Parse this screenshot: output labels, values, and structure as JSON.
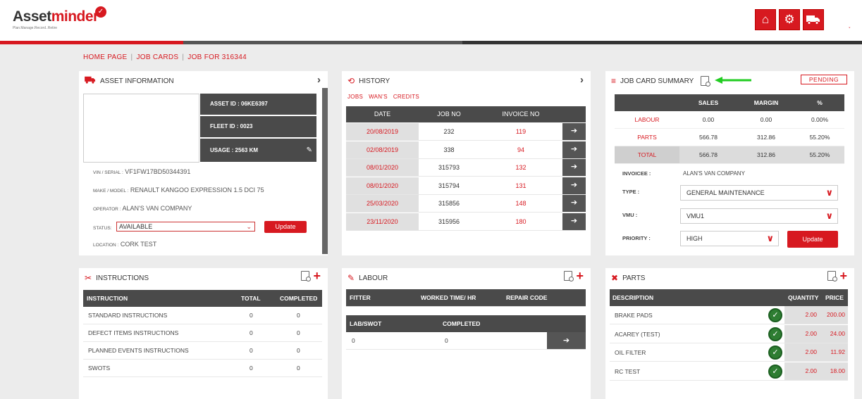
{
  "header": {
    "logo_part1": "Asset",
    "logo_part2": "minder",
    "logo_tagline": "Plan.Manage.Record..Retire",
    "icons": [
      "home-icon",
      "gear-icon",
      "truck-icon"
    ],
    "caret": "˯"
  },
  "breadcrumb": [
    "HOME PAGE",
    "JOB CARDS",
    "JOB FOR 316344"
  ],
  "asset": {
    "title": "ASSET INFORMATION",
    "asset_id": "ASSET ID : 06KE6397",
    "fleet_id": "FLEET ID : 0023",
    "usage": "USAGE : 2563 KM",
    "vin_label": "VIN / SERIAL :",
    "vin": "VF1FW17BD50344391",
    "make_label": "MAKE / MODEL :",
    "make": "RENAULT KANGOO EXPRESSION 1.5 DCI 75",
    "operator_label": "OPERATOR :",
    "operator": "ALAN'S VAN COMPANY",
    "status_label": "STATUS:",
    "status": "AVAILABLE",
    "update": "Update",
    "location_label": "LOCATION :",
    "location": "CORK TEST"
  },
  "history": {
    "title": "HISTORY",
    "tabs": [
      "JOBS",
      "WAN'S",
      "CREDITS"
    ],
    "columns": [
      "DATE",
      "JOB NO",
      "INVOICE NO"
    ],
    "rows": [
      {
        "date": "20/08/2019",
        "job": "232",
        "invoice": "119"
      },
      {
        "date": "02/08/2019",
        "job": "338",
        "invoice": "94"
      },
      {
        "date": "08/01/2020",
        "job": "315793",
        "invoice": "132"
      },
      {
        "date": "08/01/2020",
        "job": "315794",
        "invoice": "131"
      },
      {
        "date": "25/03/2020",
        "job": "315856",
        "invoice": "148"
      },
      {
        "date": "23/11/2020",
        "job": "315956",
        "invoice": "180"
      }
    ]
  },
  "summary": {
    "title": "JOB CARD SUMMARY",
    "status": "PENDING",
    "columns": [
      "",
      "SALES",
      "MARGIN",
      "%"
    ],
    "rows": [
      {
        "label": "LABOUR",
        "sales": "0.00",
        "margin": "0.00",
        "pct": "0.00%"
      },
      {
        "label": "PARTS",
        "sales": "566.78",
        "margin": "312.86",
        "pct": "55.20%"
      },
      {
        "label": "TOTAL",
        "sales": "566.78",
        "margin": "312.86",
        "pct": "55.20%"
      }
    ],
    "invoicee_label": "INVOICEE :",
    "invoicee": "ALAN'S VAN COMPANY",
    "type_label": "TYPE :",
    "type": "GENERAL MAINTENANCE",
    "vmu_label": "VMU :",
    "vmu": "VMU1",
    "priority_label": "PRIORITY :",
    "priority": "HIGH",
    "update": "Update"
  },
  "instructions": {
    "title": "INSTRUCTIONS",
    "columns": [
      "INSTRUCTION",
      "TOTAL",
      "COMPLETED"
    ],
    "rows": [
      {
        "name": "STANDARD INSTRUCTIONS",
        "total": "0",
        "completed": "0"
      },
      {
        "name": "DEFECT ITEMS INSTRUCTIONS",
        "total": "0",
        "completed": "0"
      },
      {
        "name": "PLANNED EVENTS INSTRUCTIONS",
        "total": "0",
        "completed": "0"
      },
      {
        "name": "SWOTS",
        "total": "0",
        "completed": "0"
      }
    ]
  },
  "labour": {
    "title": "LABOUR",
    "columns": [
      "FITTER",
      "WORKED TIME/ HR",
      "REPAIR CODE"
    ],
    "columns2": [
      "LAB/SWOT",
      "COMPLETED"
    ],
    "row2": {
      "lab": "0",
      "completed": "0"
    }
  },
  "parts": {
    "title": "PARTS",
    "columns": [
      "DESCRIPTION",
      "QUANTITY",
      "PRICE"
    ],
    "rows": [
      {
        "name": "BRAKE PADS",
        "qty": "2.00",
        "price": "200.00"
      },
      {
        "name": "ACAREY (TEST)",
        "qty": "2.00",
        "price": "24.00"
      },
      {
        "name": "OIL FILTER",
        "qty": "2.00",
        "price": "11.92"
      },
      {
        "name": "RC TEST",
        "qty": "2.00",
        "price": "18.00"
      }
    ]
  },
  "colors": {
    "accent": "#d71920",
    "dark": "#4a4a4a",
    "arrow": "#22cc22"
  }
}
